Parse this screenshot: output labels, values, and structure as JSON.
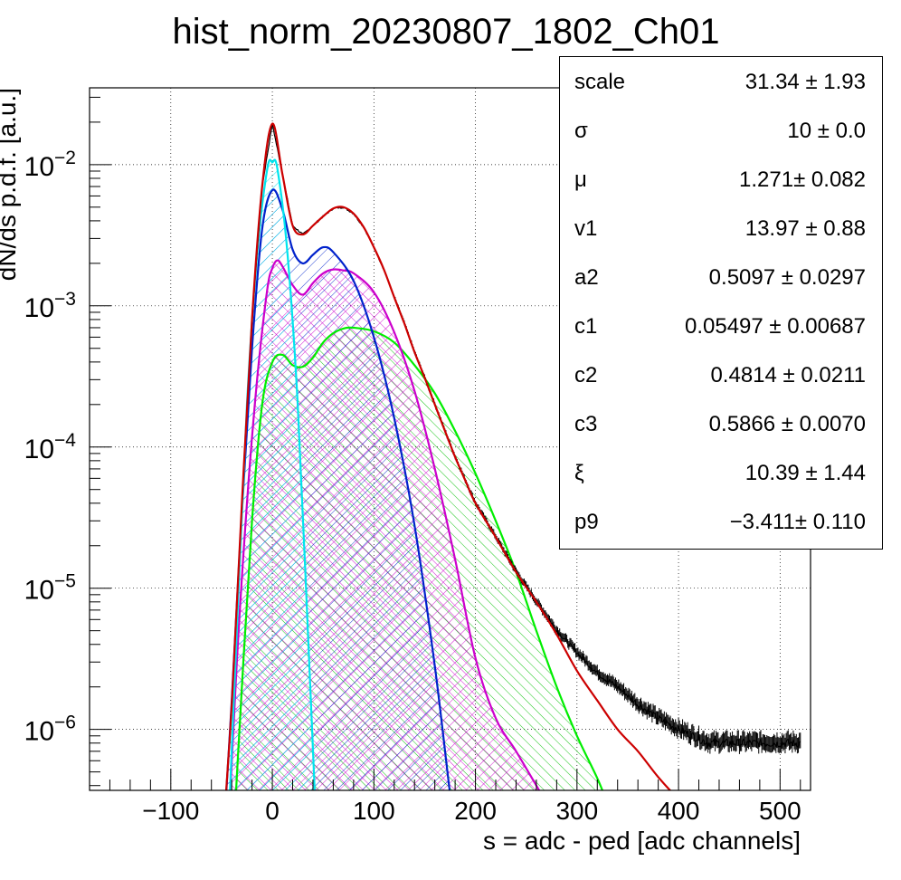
{
  "chart_data": {
    "type": "line",
    "title": "hist_norm_20230807_1802_Ch01",
    "xlabel": "s = adc - ped [adc channels]",
    "ylabel": "dN/ds p.d.f. [a.u.]",
    "xlim": [
      -180,
      530
    ],
    "ylim": [
      3.7e-07,
      0.035
    ],
    "log_y": true,
    "grid": true,
    "x_ticks": [
      -100,
      0,
      100,
      200,
      300,
      400,
      500
    ],
    "x_tick_labels": [
      "−100",
      "0",
      "100",
      "200",
      "300",
      "400",
      "500"
    ],
    "y_ticks": [
      {
        "value": 1e-06,
        "base": "10",
        "exp": "−6"
      },
      {
        "value": 1e-05,
        "base": "10",
        "exp": "−5"
      },
      {
        "value": 0.0001,
        "base": "10",
        "exp": "−4"
      },
      {
        "value": 0.001,
        "base": "10",
        "exp": "−3"
      },
      {
        "value": 0.01,
        "base": "10",
        "exp": "−2"
      }
    ],
    "series": [
      {
        "color": "#000000",
        "style": "histogram",
        "x": [
          -50,
          -40,
          -30,
          -20,
          -10,
          0,
          10,
          20,
          30,
          40,
          50,
          60,
          70,
          80,
          90,
          100,
          110,
          120,
          130,
          140,
          150,
          160,
          170,
          180,
          190,
          200,
          220,
          240,
          260,
          280,
          300,
          320,
          340,
          360,
          380,
          400,
          430,
          460,
          490,
          520
        ],
        "y": [
          1.2e-07,
          1.5e-06,
          4e-05,
          0.0008,
          0.007,
          0.0195,
          0.0085,
          0.0037,
          0.0032,
          0.0037,
          0.0043,
          0.0049,
          0.005,
          0.0045,
          0.0036,
          0.0026,
          0.0018,
          0.00115,
          0.00075,
          0.00047,
          0.00031,
          0.0002,
          0.00013,
          8.5e-05,
          5.8e-05,
          4e-05,
          2.3e-05,
          1.3e-05,
          8e-06,
          5e-06,
          3.5e-06,
          2.5e-06,
          2e-06,
          1.5e-06,
          1.2e-06,
          1e-06,
          8e-07,
          8e-07,
          8e-07,
          8e-07
        ]
      },
      {
        "color": "#cc0000",
        "style": "line",
        "x": [
          -50,
          -40,
          -30,
          -20,
          -10,
          0,
          10,
          20,
          30,
          40,
          50,
          60,
          70,
          80,
          90,
          100,
          110,
          120,
          130,
          140,
          150,
          160,
          170,
          180,
          190,
          200,
          220,
          240,
          260,
          280,
          300,
          320,
          340,
          360,
          380,
          400,
          405
        ],
        "y": [
          1.2e-07,
          1.5e-06,
          4e-05,
          0.0008,
          0.007,
          0.0195,
          0.0085,
          0.0037,
          0.0032,
          0.0037,
          0.0043,
          0.0049,
          0.005,
          0.0045,
          0.0036,
          0.0026,
          0.0018,
          0.00115,
          0.00075,
          0.00047,
          0.00031,
          0.0002,
          0.00013,
          8.5e-05,
          5.8e-05,
          4e-05,
          2.3e-05,
          1.3e-05,
          8e-06,
          4.7e-06,
          2.6e-06,
          1.6e-06,
          1e-06,
          7e-07,
          4.6e-07,
          3.2e-07,
          3e-07
        ]
      },
      {
        "color": "#00e5ee",
        "style": "hatched",
        "x": [
          -45,
          -35,
          -25,
          -15,
          -5,
          0,
          5,
          15,
          25,
          35,
          45
        ],
        "y": [
          1e-07,
          5e-06,
          0.0002,
          0.0023,
          0.0093,
          0.0104,
          0.0093,
          0.0023,
          0.0002,
          5e-06,
          1e-07
        ]
      },
      {
        "color": "#0022cc",
        "style": "hatched",
        "x": [
          -50,
          -40,
          -30,
          -20,
          -10,
          0,
          10,
          20,
          30,
          40,
          50,
          60,
          80,
          100,
          120,
          140,
          160,
          175,
          180
        ],
        "y": [
          1e-07,
          1.6e-06,
          3.5e-05,
          0.0005,
          0.0035,
          0.0066,
          0.0048,
          0.0025,
          0.002,
          0.0023,
          0.0026,
          0.0024,
          0.0015,
          0.0006,
          0.00016,
          2.8e-05,
          2.8e-06,
          3.5e-07,
          2e-07
        ]
      },
      {
        "color": "#cc00cc",
        "style": "hatched",
        "x": [
          -45,
          -35,
          -25,
          -15,
          -5,
          0,
          5,
          10,
          20,
          30,
          40,
          50,
          60,
          70,
          80,
          100,
          120,
          140,
          160,
          180,
          200,
          220,
          240,
          260,
          270
        ],
        "y": [
          1e-07,
          3e-06,
          4e-05,
          0.0003,
          0.0013,
          0.00185,
          0.0021,
          0.0019,
          0.0014,
          0.0012,
          0.00145,
          0.0017,
          0.00181,
          0.00178,
          0.0017,
          0.00125,
          0.00065,
          0.00025,
          7e-05,
          1.6e-05,
          3.2e-06,
          1.2e-06,
          7e-07,
          4e-07,
          3e-07
        ]
      },
      {
        "color": "#00ee00",
        "style": "hatched",
        "x": [
          -40,
          -30,
          -20,
          -10,
          0,
          10,
          20,
          30,
          40,
          50,
          60,
          70,
          80,
          100,
          120,
          140,
          160,
          180,
          200,
          220,
          240,
          260,
          280,
          300,
          320,
          330
        ],
        "y": [
          1e-07,
          2e-06,
          3e-05,
          0.0002,
          0.0004,
          0.00045,
          0.00038,
          0.00037,
          0.00043,
          0.00055,
          0.00064,
          0.00069,
          0.0007,
          0.00066,
          0.00055,
          0.00038,
          0.00024,
          0.00013,
          6.5e-05,
          3e-05,
          1.3e-05,
          5e-06,
          2e-06,
          9e-07,
          4.5e-07,
          3e-07
        ]
      }
    ]
  },
  "stats": [
    {
      "name": "scale",
      "value": "31.34 ± 1.93"
    },
    {
      "name": "σ",
      "value": "10 ± 0.0"
    },
    {
      "name": "μ",
      "value": "1.271± 0.082"
    },
    {
      "name": "v1",
      "value": "13.97 ± 0.88"
    },
    {
      "name": "a2",
      "value": "0.5097 ± 0.0297"
    },
    {
      "name": "c1",
      "value": "0.05497 ± 0.00687"
    },
    {
      "name": "c2",
      "value": "0.4814 ± 0.0211"
    },
    {
      "name": "c3",
      "value": "0.5866 ± 0.0070"
    },
    {
      "name": "ξ",
      "value": "10.39 ± 1.44"
    },
    {
      "name": "p9",
      "value": "−3.411± 0.110"
    }
  ]
}
